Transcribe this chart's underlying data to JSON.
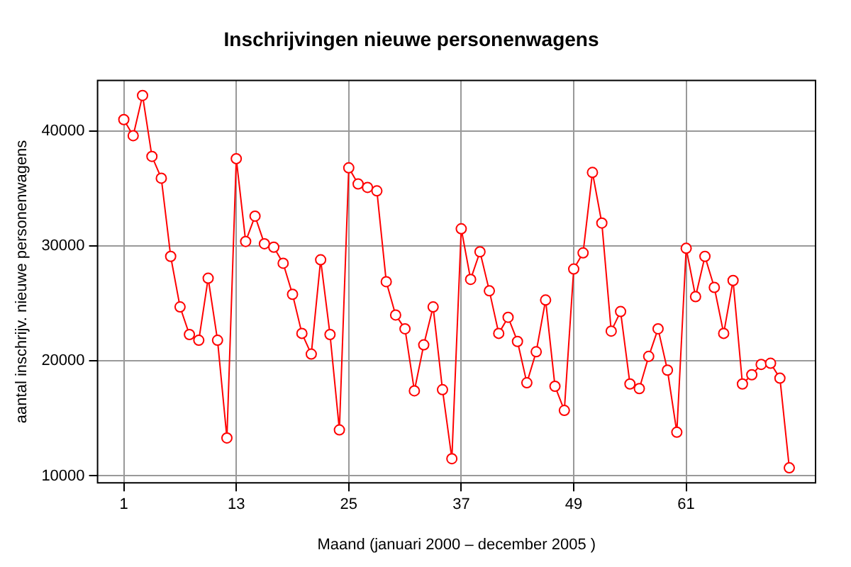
{
  "chart_data": {
    "type": "line",
    "title": "Inschrijvingen nieuwe personenwagens",
    "xlabel": "Maand (januari 2000 – december 2005 )",
    "ylabel": "aantal inschrijv. nieuwe personenwagens",
    "x": [
      1,
      2,
      3,
      4,
      5,
      6,
      7,
      8,
      9,
      10,
      11,
      12,
      13,
      14,
      15,
      16,
      17,
      18,
      19,
      20,
      21,
      22,
      23,
      24,
      25,
      26,
      27,
      28,
      29,
      30,
      31,
      32,
      33,
      34,
      35,
      36,
      37,
      38,
      39,
      40,
      41,
      42,
      43,
      44,
      45,
      46,
      47,
      48,
      49,
      50,
      51,
      52,
      53,
      54,
      55,
      56,
      57,
      58,
      59,
      60,
      61,
      62,
      63,
      64,
      65,
      66,
      67,
      68,
      69,
      70,
      71,
      72
    ],
    "series": [
      {
        "color": "#ff0000",
        "values": [
          41000,
          39600,
          43100,
          37800,
          35900,
          29100,
          24700,
          22300,
          21800,
          27200,
          21800,
          13300,
          37600,
          30400,
          32600,
          30200,
          29900,
          28500,
          25800,
          22400,
          20600,
          28800,
          22300,
          14000,
          36800,
          35400,
          35100,
          34800,
          26900,
          24000,
          22800,
          17400,
          21400,
          24700,
          17500,
          11500,
          31500,
          27100,
          29500,
          26100,
          22400,
          23800,
          21700,
          18100,
          20800,
          25300,
          17800,
          15700,
          28000,
          29400,
          36400,
          32000,
          22600,
          24300,
          18000,
          17600,
          20400,
          22800,
          19200,
          13800,
          29800,
          25600,
          29100,
          26400,
          22400,
          27000,
          18000,
          18800,
          19700,
          19800,
          18500,
          10700
        ]
      }
    ],
    "xlim": [
      -1.8,
      74.8
    ],
    "xticks": [
      1,
      13,
      25,
      37,
      49,
      61
    ],
    "ylim": [
      9400,
      44400
    ],
    "yticks": [
      10000,
      20000,
      30000,
      40000
    ],
    "grid": true,
    "marker": "circle",
    "line_style": "solid"
  }
}
